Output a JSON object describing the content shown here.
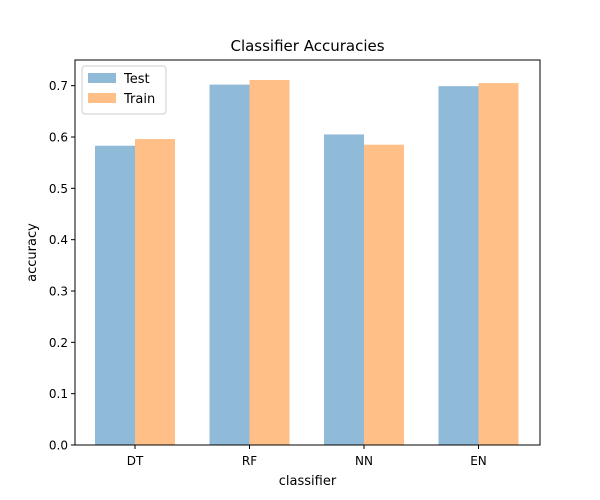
{
  "chart_data": {
    "type": "bar",
    "title": "Classifier Accuracies",
    "xlabel": "classifier",
    "ylabel": "accuracy",
    "categories": [
      "DT",
      "RF",
      "NN",
      "EN"
    ],
    "ylim": [
      0,
      0.75
    ],
    "yticks": [
      "0.0",
      "0.1",
      "0.2",
      "0.3",
      "0.4",
      "0.5",
      "0.6",
      "0.7"
    ],
    "grid": false,
    "legend_position": "top-left",
    "series": [
      {
        "name": "Test",
        "color": "#8fbbd9",
        "values": [
          0.583,
          0.702,
          0.605,
          0.699
        ]
      },
      {
        "name": "Train",
        "color": "#ffbf86",
        "values": [
          0.596,
          0.711,
          0.585,
          0.705
        ]
      }
    ]
  }
}
